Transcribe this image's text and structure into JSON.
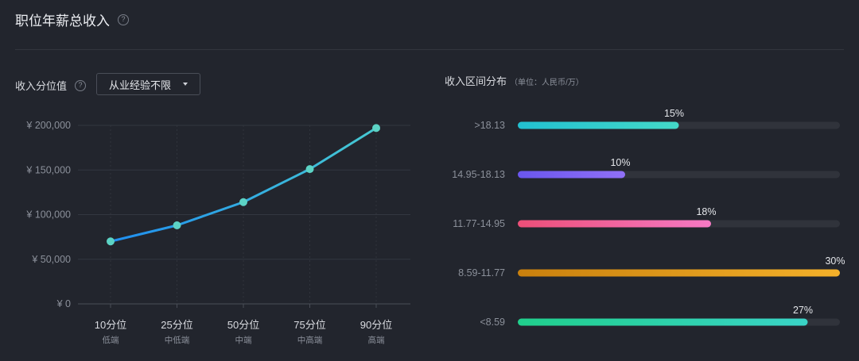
{
  "header": {
    "title": "职位年薪总收入",
    "help": "?"
  },
  "left": {
    "label": "收入分位值",
    "help": "?",
    "dropdown_value": "从业经验不限"
  },
  "right": {
    "label": "收入区间分布",
    "unit": "（单位：人民币/万）"
  },
  "colors": {
    "line_start": "#1f8ef0",
    "line_end": "#46c9d2",
    "point": "#5cd3c5"
  },
  "chart_data": [
    {
      "type": "line",
      "categories": [
        "10分位",
        "25分位",
        "50分位",
        "75分位",
        "90分位"
      ],
      "sublabels": [
        "低端",
        "中低端",
        "中端",
        "中高端",
        "高端"
      ],
      "values": [
        70000,
        88000,
        114000,
        151000,
        197000
      ],
      "ylim": [
        0,
        200000
      ],
      "yticks": [
        "¥ 200,000",
        "¥ 150,000",
        "¥ 100,000",
        "¥ 50,000",
        "¥ 0"
      ],
      "ytick_values": [
        200000,
        150000,
        100000,
        50000,
        0
      ],
      "grid": true
    },
    {
      "type": "bar",
      "orientation": "horizontal",
      "categories": [
        ">18.13",
        "14.95-18.13",
        "11.77-14.95",
        "8.59-11.77",
        "<8.59"
      ],
      "values": [
        15,
        10,
        18,
        30,
        27
      ],
      "labels": [
        "15%",
        "10%",
        "18%",
        "30%",
        "27%"
      ],
      "xlim": [
        0,
        30
      ],
      "colors": [
        [
          "#22c0d0",
          "#44d9c8"
        ],
        [
          "#6a56ee",
          "#9070f6"
        ],
        [
          "#ec4f78",
          "#f67ac4"
        ],
        [
          "#c9800d",
          "#f4b12a"
        ],
        [
          "#20cf8c",
          "#3ad4c7"
        ]
      ]
    }
  ]
}
